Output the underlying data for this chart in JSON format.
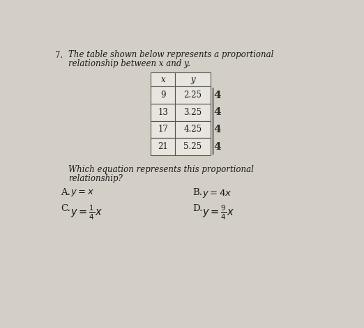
{
  "question_number": "7.",
  "question_text1": "The table shown below represents a proportional",
  "question_text2": "relationship between x and y.",
  "table_headers": [
    "x",
    "y"
  ],
  "table_data": [
    [
      "9",
      "2.25"
    ],
    [
      "13",
      "3.25"
    ],
    [
      "17",
      "4.25"
    ],
    [
      "21",
      "5.25"
    ]
  ],
  "handwritten_notes": [
    "4",
    "4",
    "4",
    "4"
  ],
  "sub_question": "Which equation represents this proportional",
  "sub_question2": "relationship?",
  "bg_color": "#d4cfc6",
  "text_color": "#1a1a1a",
  "table_bg": "#e8e4de",
  "font_size_main": 8.5,
  "font_size_table": 8.5,
  "font_size_option": 9.5,
  "font_size_handwritten": 11
}
